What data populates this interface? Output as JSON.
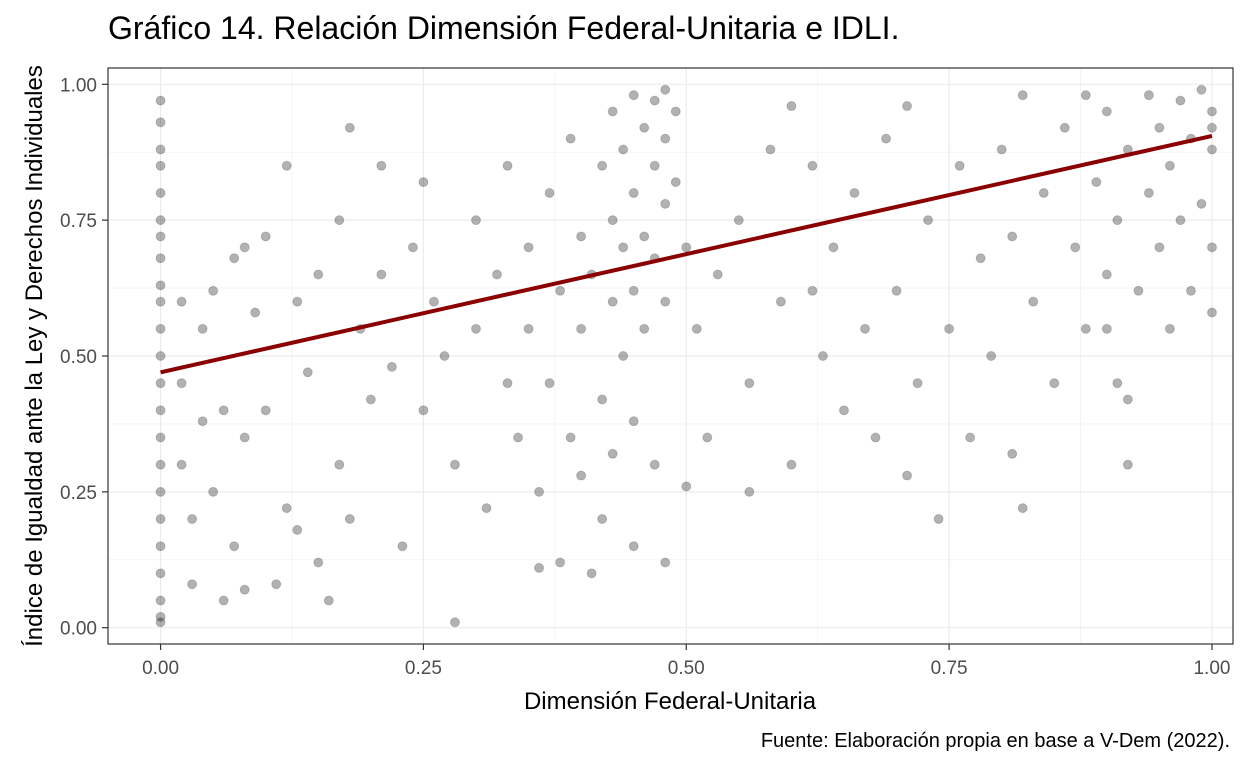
{
  "chart_data": {
    "type": "scatter",
    "title": "Gráfico 14. Relación Dimensión Federal-Unitaria e IDLI.",
    "xlabel": "Dimensión Federal-Unitaria",
    "ylabel": "Índice de Igualdad ante la Ley y Derechos Individuales",
    "caption": "Fuente: Elaboración propia en base a V-Dem (2022).",
    "xlim": [
      -0.05,
      1.02
    ],
    "ylim": [
      -0.03,
      1.03
    ],
    "x_ticks": [
      0,
      0.25,
      0.5,
      0.75,
      1
    ],
    "y_ticks": [
      0,
      0.25,
      0.5,
      0.75,
      1
    ],
    "x_tick_labels": [
      "0.00",
      "0.25",
      "0.50",
      "0.75",
      "1.00"
    ],
    "y_tick_labels": [
      "0.00",
      "0.25",
      "0.50",
      "0.75",
      "1.00"
    ],
    "grid": true,
    "point_color": "#000000",
    "point_alpha": 0.3,
    "trend_color": "#8b0000",
    "trend_line": {
      "x": [
        0,
        1
      ],
      "y": [
        0.47,
        0.905
      ]
    },
    "points": [
      [
        0,
        0.97
      ],
      [
        0,
        0.93
      ],
      [
        0,
        0.88
      ],
      [
        0,
        0.85
      ],
      [
        0,
        0.8
      ],
      [
        0,
        0.75
      ],
      [
        0,
        0.72
      ],
      [
        0,
        0.68
      ],
      [
        0,
        0.63
      ],
      [
        0,
        0.6
      ],
      [
        0,
        0.55
      ],
      [
        0,
        0.5
      ],
      [
        0,
        0.45
      ],
      [
        0,
        0.4
      ],
      [
        0,
        0.35
      ],
      [
        0,
        0.3
      ],
      [
        0,
        0.25
      ],
      [
        0,
        0.2
      ],
      [
        0,
        0.15
      ],
      [
        0,
        0.1
      ],
      [
        0,
        0.05
      ],
      [
        0,
        0.02
      ],
      [
        0,
        0.01
      ],
      [
        0.02,
        0.6
      ],
      [
        0.02,
        0.45
      ],
      [
        0.02,
        0.3
      ],
      [
        0.03,
        0.2
      ],
      [
        0.03,
        0.08
      ],
      [
        0.04,
        0.55
      ],
      [
        0.04,
        0.38
      ],
      [
        0.05,
        0.62
      ],
      [
        0.05,
        0.25
      ],
      [
        0.06,
        0.4
      ],
      [
        0.06,
        0.05
      ],
      [
        0.07,
        0.68
      ],
      [
        0.07,
        0.15
      ],
      [
        0.08,
        0.7
      ],
      [
        0.08,
        0.35
      ],
      [
        0.09,
        0.58
      ],
      [
        0.1,
        0.4
      ],
      [
        0.1,
        0.72
      ],
      [
        0.11,
        0.08
      ],
      [
        0.12,
        0.85
      ],
      [
        0.12,
        0.22
      ],
      [
        0.13,
        0.6
      ],
      [
        0.14,
        0.47
      ],
      [
        0.15,
        0.65
      ],
      [
        0.15,
        0.12
      ],
      [
        0.16,
        0.05
      ],
      [
        0.17,
        0.75
      ],
      [
        0.17,
        0.3
      ],
      [
        0.18,
        0.92
      ],
      [
        0.18,
        0.2
      ],
      [
        0.19,
        0.55
      ],
      [
        0.2,
        0.42
      ],
      [
        0.21,
        0.85
      ],
      [
        0.21,
        0.65
      ],
      [
        0.22,
        0.48
      ],
      [
        0.23,
        0.15
      ],
      [
        0.24,
        0.7
      ],
      [
        0.25,
        0.4
      ],
      [
        0.26,
        0.6
      ],
      [
        0.27,
        0.5
      ],
      [
        0.28,
        0.01
      ],
      [
        0.28,
        0.3
      ],
      [
        0.3,
        0.75
      ],
      [
        0.3,
        0.55
      ],
      [
        0.31,
        0.22
      ],
      [
        0.32,
        0.65
      ],
      [
        0.33,
        0.45
      ],
      [
        0.33,
        0.85
      ],
      [
        0.34,
        0.35
      ],
      [
        0.35,
        0.7
      ],
      [
        0.35,
        0.55
      ],
      [
        0.36,
        0.25
      ],
      [
        0.37,
        0.8
      ],
      [
        0.37,
        0.45
      ],
      [
        0.38,
        0.62
      ],
      [
        0.38,
        0.12
      ],
      [
        0.39,
        0.9
      ],
      [
        0.39,
        0.35
      ],
      [
        0.4,
        0.72
      ],
      [
        0.4,
        0.55
      ],
      [
        0.4,
        0.28
      ],
      [
        0.41,
        0.1
      ],
      [
        0.41,
        0.65
      ],
      [
        0.42,
        0.85
      ],
      [
        0.42,
        0.42
      ],
      [
        0.42,
        0.2
      ],
      [
        0.43,
        0.95
      ],
      [
        0.43,
        0.75
      ],
      [
        0.43,
        0.6
      ],
      [
        0.43,
        0.32
      ],
      [
        0.44,
        0.88
      ],
      [
        0.44,
        0.7
      ],
      [
        0.44,
        0.5
      ],
      [
        0.45,
        0.98
      ],
      [
        0.45,
        0.8
      ],
      [
        0.45,
        0.62
      ],
      [
        0.45,
        0.38
      ],
      [
        0.45,
        0.15
      ],
      [
        0.46,
        0.92
      ],
      [
        0.46,
        0.72
      ],
      [
        0.46,
        0.55
      ],
      [
        0.47,
        0.97
      ],
      [
        0.47,
        0.85
      ],
      [
        0.47,
        0.68
      ],
      [
        0.47,
        0.3
      ],
      [
        0.48,
        0.99
      ],
      [
        0.48,
        0.9
      ],
      [
        0.48,
        0.78
      ],
      [
        0.48,
        0.6
      ],
      [
        0.48,
        0.12
      ],
      [
        0.49,
        0.95
      ],
      [
        0.49,
        0.82
      ],
      [
        0.5,
        0.7
      ],
      [
        0.5,
        0.26
      ],
      [
        0.51,
        0.55
      ],
      [
        0.52,
        0.35
      ],
      [
        0.53,
        0.65
      ],
      [
        0.55,
        0.75
      ],
      [
        0.56,
        0.45
      ],
      [
        0.58,
        0.88
      ],
      [
        0.59,
        0.6
      ],
      [
        0.6,
        0.96
      ],
      [
        0.6,
        0.3
      ],
      [
        0.62,
        0.85
      ],
      [
        0.63,
        0.5
      ],
      [
        0.64,
        0.7
      ],
      [
        0.65,
        0.4
      ],
      [
        0.66,
        0.8
      ],
      [
        0.67,
        0.55
      ],
      [
        0.68,
        0.35
      ],
      [
        0.69,
        0.9
      ],
      [
        0.7,
        0.62
      ],
      [
        0.71,
        0.96
      ],
      [
        0.71,
        0.28
      ],
      [
        0.72,
        0.45
      ],
      [
        0.73,
        0.75
      ],
      [
        0.74,
        0.2
      ],
      [
        0.75,
        0.55
      ],
      [
        0.76,
        0.85
      ],
      [
        0.77,
        0.35
      ],
      [
        0.78,
        0.68
      ],
      [
        0.79,
        0.5
      ],
      [
        0.8,
        0.88
      ],
      [
        0.81,
        0.32
      ],
      [
        0.81,
        0.72
      ],
      [
        0.82,
        0.98
      ],
      [
        0.82,
        0.22
      ],
      [
        0.83,
        0.6
      ],
      [
        0.84,
        0.8
      ],
      [
        0.85,
        0.45
      ],
      [
        0.86,
        0.92
      ],
      [
        0.87,
        0.7
      ],
      [
        0.88,
        0.55
      ],
      [
        0.88,
        0.98
      ],
      [
        0.89,
        0.82
      ],
      [
        0.9,
        0.65
      ],
      [
        0.9,
        0.95
      ],
      [
        0.91,
        0.75
      ],
      [
        0.91,
        0.45
      ],
      [
        0.92,
        0.88
      ],
      [
        0.92,
        0.3
      ],
      [
        0.93,
        0.62
      ],
      [
        0.94,
        0.98
      ],
      [
        0.94,
        0.8
      ],
      [
        0.95,
        0.7
      ],
      [
        0.95,
        0.92
      ],
      [
        0.96,
        0.55
      ],
      [
        0.96,
        0.85
      ],
      [
        0.97,
        0.97
      ],
      [
        0.97,
        0.75
      ],
      [
        0.98,
        0.62
      ],
      [
        0.98,
        0.9
      ],
      [
        0.99,
        0.99
      ],
      [
        0.99,
        0.78
      ],
      [
        1,
        0.95
      ],
      [
        1,
        0.88
      ],
      [
        1,
        0.7
      ],
      [
        1,
        0.58
      ],
      [
        1,
        0.92
      ],
      [
        0.13,
        0.18
      ],
      [
        0.08,
        0.07
      ],
      [
        0.36,
        0.11
      ],
      [
        0.9,
        0.55
      ],
      [
        0.92,
        0.42
      ],
      [
        0.56,
        0.25
      ],
      [
        0.62,
        0.62
      ],
      [
        0.25,
        0.82
      ]
    ]
  }
}
